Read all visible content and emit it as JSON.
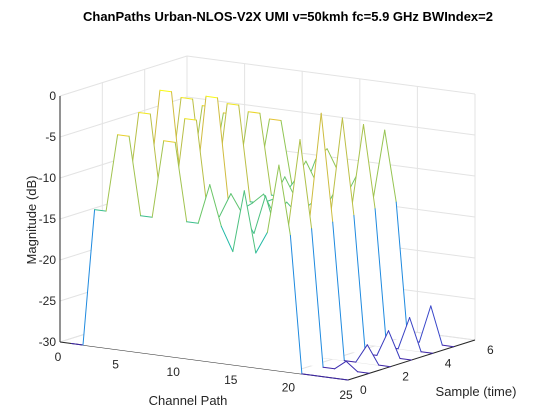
{
  "chart_data": {
    "type": "waterfall-3d",
    "title": "ChanPaths Urban-NLOS-V2X UMI v=50kmh fc=5.9 GHz BWIndex=2",
    "xlabel": "Channel Path",
    "ylabel": "Sample (time)",
    "zlabel": "Magnitude (dB)",
    "xlim": [
      0,
      25
    ],
    "ylim": [
      0,
      6
    ],
    "zlim": [
      -30,
      0
    ],
    "xticks": [
      "0",
      "5",
      "10",
      "15",
      "20",
      "25"
    ],
    "yticks": [
      "0",
      "2",
      "4",
      "6"
    ],
    "zticks": [
      "0",
      "-5",
      "-10",
      "-15",
      "-20",
      "-25",
      "-30"
    ],
    "grid": true,
    "colormap": "parula",
    "paths": [
      1,
      2,
      3,
      4,
      5,
      6,
      7,
      8,
      9,
      10,
      11,
      12,
      13,
      14,
      15,
      16,
      17,
      18,
      19,
      20,
      21,
      22,
      23,
      24,
      25
    ],
    "samples": [
      0,
      1,
      2,
      3,
      4,
      5
    ],
    "series": [
      {
        "sample": 0,
        "values": [
          -30,
          -30,
          -13.3,
          -13.3,
          -3.8,
          -3.8,
          -13.3,
          -13.3,
          -3.8,
          -3.8,
          -13.3,
          -13.3,
          -8.4,
          -13.3,
          -16.2,
          -8.6,
          -16.0,
          -13.3,
          -4.9,
          -13.3,
          -30,
          -30,
          -30,
          -30,
          -30
        ]
      },
      {
        "sample": 1,
        "values": [
          -30,
          -30,
          -13.3,
          -13.3,
          -1.9,
          -1.9,
          -13.3,
          -13.3,
          -1.9,
          -1.9,
          -13.3,
          -13.3,
          -10.3,
          -12.6,
          -14.8,
          -10.0,
          -14.5,
          -13.3,
          -2.6,
          -13.3,
          -30,
          -30,
          -28.9,
          -30,
          -30
        ]
      },
      {
        "sample": 2,
        "values": [
          -30,
          -30,
          -13.3,
          -13.3,
          0.0,
          0.0,
          -13.3,
          -13.3,
          0.0,
          0.0,
          -13.3,
          -13.3,
          -12.3,
          -11.0,
          -13.5,
          -11.6,
          -13.0,
          -13.3,
          -0.2,
          -13.3,
          -30,
          -30,
          -27.7,
          -30,
          -30
        ]
      },
      {
        "sample": 3,
        "values": [
          -30,
          -30,
          -13.3,
          -13.3,
          -1.7,
          -1.7,
          -13.3,
          -13.3,
          -1.7,
          -1.7,
          -13.3,
          -13.3,
          -12.6,
          -9.7,
          -12.3,
          -12.9,
          -11.6,
          -13.3,
          -1.6,
          -13.3,
          -30,
          -30,
          -26.8,
          -30,
          -30
        ]
      },
      {
        "sample": 4,
        "values": [
          -30,
          -30,
          -13.3,
          -13.3,
          -3.5,
          -3.5,
          -13.3,
          -13.3,
          -3.5,
          -3.5,
          -13.3,
          -13.3,
          -11.2,
          -8.6,
          -11.3,
          -13.2,
          -10.4,
          -13.3,
          -3.2,
          -13.3,
          -30,
          -30,
          -26.0,
          -30,
          -30
        ]
      },
      {
        "sample": 5,
        "values": [
          -30,
          -30,
          -13.3,
          -13.3,
          -5.2,
          -5.2,
          -13.3,
          -13.3,
          -5.2,
          -5.2,
          -13.3,
          -13.3,
          -9.4,
          -7.9,
          -10.6,
          -12.3,
          -9.4,
          -13.3,
          -4.7,
          -13.3,
          -30,
          -30,
          -25.4,
          -30,
          -30
        ]
      }
    ]
  }
}
